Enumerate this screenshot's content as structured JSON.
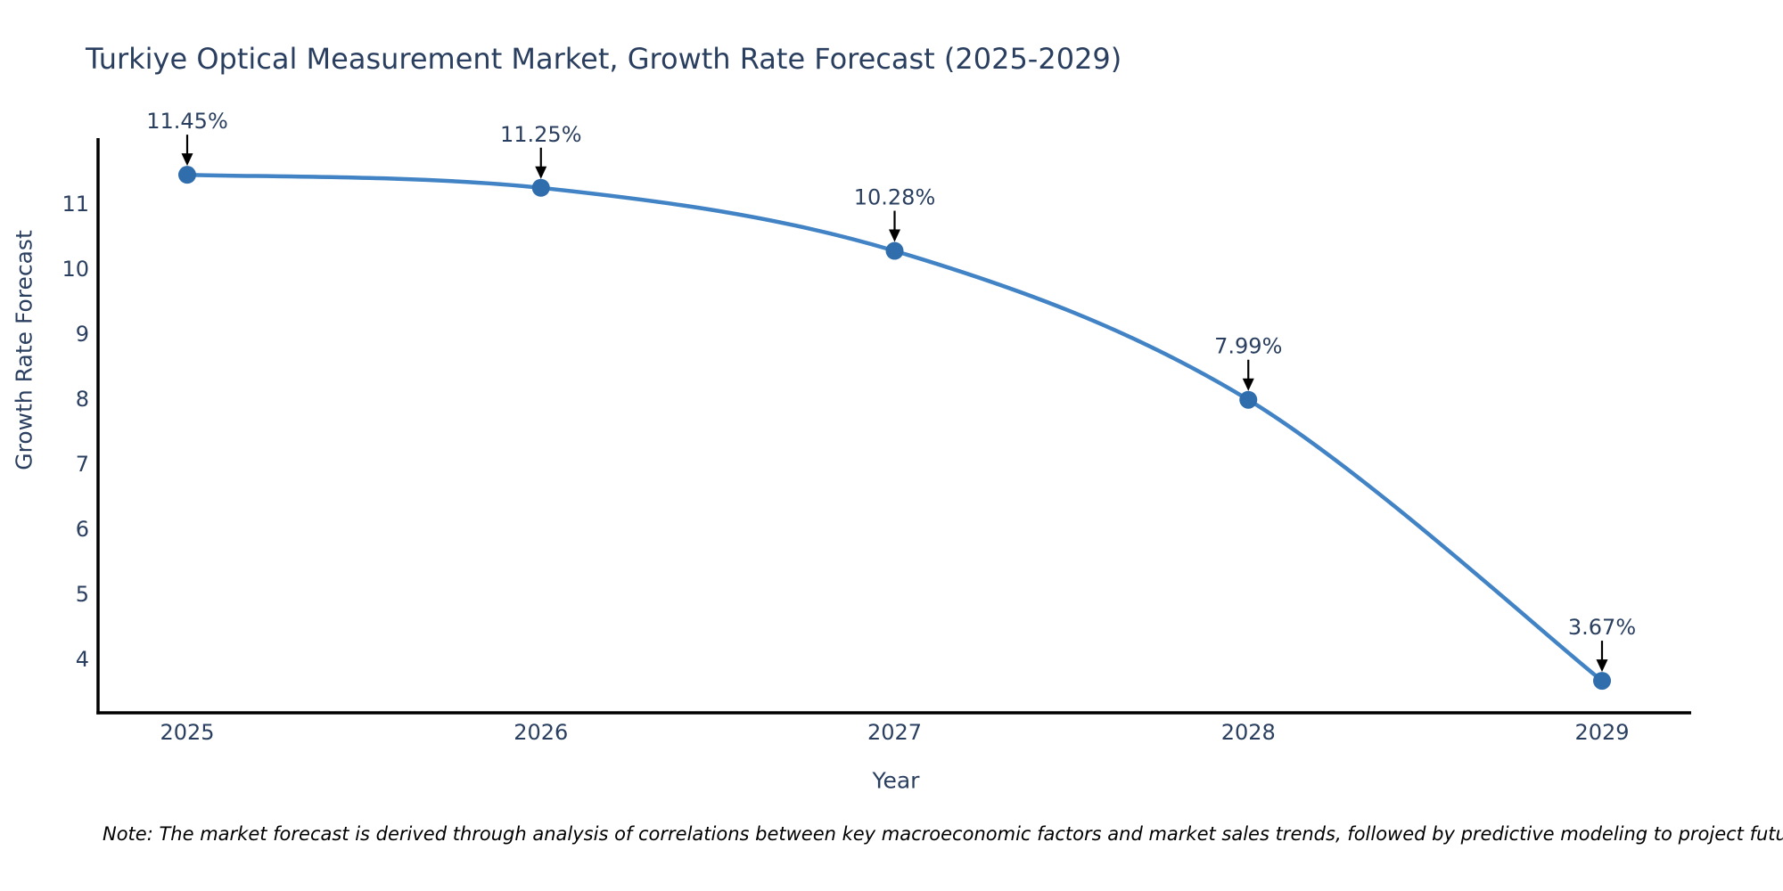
{
  "chart_data": {
    "type": "line",
    "title": "Turkiye Optical Measurement Market, Growth Rate Forecast (2025-2029)",
    "xlabel": "Year",
    "ylabel": "Growth Rate Forecast",
    "categories": [
      "2025",
      "2026",
      "2027",
      "2028",
      "2029"
    ],
    "values": [
      11.45,
      11.25,
      10.28,
      7.99,
      3.67
    ],
    "point_labels": [
      "11.45%",
      "11.25%",
      "10.28%",
      "7.99%",
      "3.67%"
    ],
    "yticks": [
      4,
      5,
      6,
      7,
      8,
      9,
      10,
      11
    ],
    "ylim": [
      3.18,
      12.0
    ],
    "line_shape": "spline",
    "grid": false,
    "legend": "none",
    "annotation_style": "down-arrow",
    "colors": {
      "line": "#4183c4",
      "marker": "#2f6dad",
      "axis": "#000000",
      "tick_text": "#2a3f5f",
      "annotation_text": "#2a3f5f",
      "arrow": "#000000",
      "title_text": "#2a3f5f"
    }
  },
  "note": {
    "text": "Note: The market forecast is derived through analysis of correlations between key macroeconomic factors and market sales trends, followed by predictive modeling to project future sales"
  }
}
